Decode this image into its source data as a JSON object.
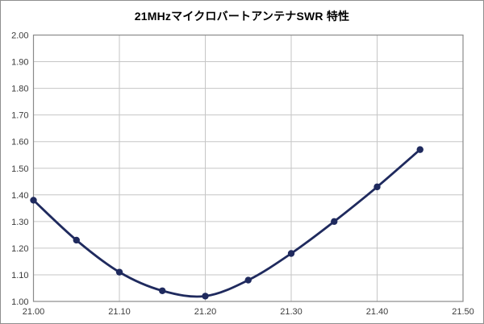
{
  "chart": {
    "title": "21MHzマイクロバートアンテナSWR 特性"
  },
  "chart_data": {
    "type": "line",
    "title": "21MHzマイクロバートアンテナSWR 特性",
    "x": [
      21.0,
      21.05,
      21.1,
      21.15,
      21.2,
      21.25,
      21.3,
      21.35,
      21.4,
      21.45
    ],
    "series": [
      {
        "name": "SWR",
        "values": [
          1.38,
          1.23,
          1.11,
          1.04,
          1.02,
          1.08,
          1.18,
          1.3,
          1.43,
          1.57
        ]
      }
    ],
    "xlabel": "",
    "ylabel": "",
    "xlim": [
      21.0,
      21.5
    ],
    "ylim": [
      1.0,
      2.0
    ],
    "x_tick_labels": [
      "21.00",
      "21.10",
      "21.20",
      "21.30",
      "21.40",
      "21.50"
    ],
    "x_tick_values": [
      21.0,
      21.1,
      21.2,
      21.3,
      21.4,
      21.5
    ],
    "y_tick_labels": [
      "1.00",
      "1.10",
      "1.20",
      "1.30",
      "1.40",
      "1.50",
      "1.60",
      "1.70",
      "1.80",
      "1.90",
      "2.00"
    ],
    "y_tick_values": [
      1.0,
      1.1,
      1.2,
      1.3,
      1.4,
      1.5,
      1.6,
      1.7,
      1.8,
      1.9,
      2.0
    ],
    "grid": true,
    "legend_position": "none",
    "smooth_line": true,
    "marker": "circle",
    "colors": {
      "line": "#1f2a5e",
      "marker": "#1f2a5e",
      "gridline": "#c6c6c6",
      "plot_border": "#8a8a8a",
      "background": "#ffffff",
      "tick_text": "#3b3b3b"
    }
  }
}
